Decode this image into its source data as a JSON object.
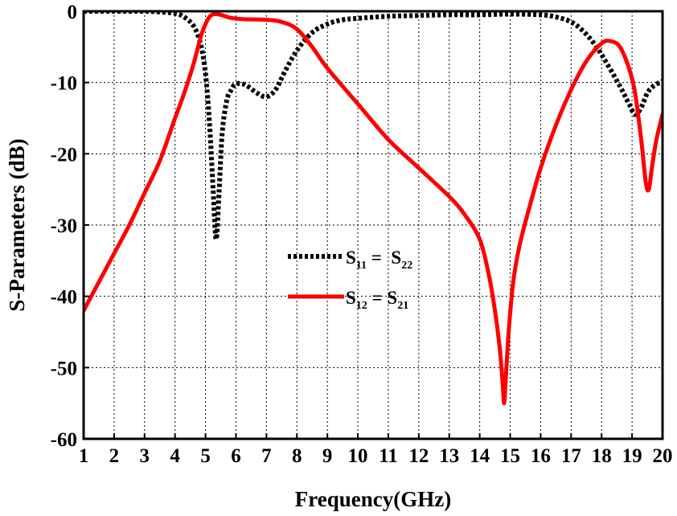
{
  "chart_data": {
    "type": "line",
    "title": "",
    "xlabel": "Frequency(GHz)",
    "ylabel": "S-Parameters (dB)",
    "xlim": [
      1,
      20
    ],
    "ylim": [
      -60,
      0
    ],
    "grid": true,
    "legend_position": "center",
    "x_ticks": [
      "1",
      "2",
      "3",
      "4",
      "5",
      "6",
      "7",
      "8",
      "9",
      "10",
      "11",
      "12",
      "13",
      "14",
      "15",
      "16",
      "17",
      "18",
      "19",
      "20"
    ],
    "y_ticks": [
      "0",
      "-10",
      "-20",
      "-30",
      "-40",
      "-50",
      "-60"
    ],
    "series": [
      {
        "key": "s11",
        "legend_main": "S",
        "legend_sub1": "11",
        "legend_mid": " =  S",
        "legend_sub2": "22",
        "color": "#000000",
        "style": "dotted",
        "x": [
          1,
          2,
          3,
          3.5,
          4,
          4.3,
          4.6,
          4.8,
          4.95,
          5.05,
          5.15,
          5.25,
          5.35,
          5.45,
          5.55,
          5.7,
          5.85,
          6.0,
          6.3,
          6.7,
          7.0,
          7.3,
          7.6,
          8.0,
          8.5,
          9.0,
          9.5,
          10,
          11,
          12,
          13,
          14,
          15,
          16,
          16.5,
          17.0,
          17.4,
          17.8,
          18.2,
          18.6,
          18.9,
          19.1,
          19.3,
          19.5,
          19.7,
          20.0
        ],
        "y": [
          0,
          0,
          0,
          -0.1,
          -0.3,
          -0.8,
          -2,
          -4,
          -7,
          -11,
          -17,
          -25,
          -32,
          -25,
          -17,
          -12.5,
          -11,
          -10.2,
          -10.3,
          -11.5,
          -12,
          -11,
          -8.5,
          -5.5,
          -3,
          -1.8,
          -1.2,
          -1,
          -0.7,
          -0.6,
          -0.5,
          -0.5,
          -0.4,
          -0.5,
          -0.8,
          -1.5,
          -2.8,
          -4.8,
          -7.5,
          -10.5,
          -13,
          -14.5,
          -13.5,
          -11.5,
          -10.5,
          -9.8
        ]
      },
      {
        "key": "s21",
        "legend_main": "S",
        "legend_sub1": "12",
        "legend_mid": " = S",
        "legend_sub2": "21",
        "color": "#ff0000",
        "style": "solid",
        "x": [
          1,
          1.5,
          2,
          2.5,
          3,
          3.5,
          4,
          4.3,
          4.6,
          4.85,
          5.0,
          5.15,
          5.3,
          5.5,
          5.8,
          6.2,
          7.0,
          7.5,
          8.0,
          8.5,
          9.0,
          10,
          11,
          12,
          13,
          13.5,
          14,
          14.3,
          14.5,
          14.65,
          14.75,
          14.8,
          14.85,
          14.95,
          15.1,
          15.3,
          15.6,
          16,
          16.5,
          17,
          17.5,
          18,
          18.3,
          18.6,
          18.9,
          19.1,
          19.3,
          19.45,
          19.55,
          19.65,
          19.8,
          20.0
        ],
        "y": [
          -42,
          -38,
          -34,
          -30,
          -25.5,
          -21,
          -15,
          -11.5,
          -7.5,
          -3.5,
          -1.8,
          -0.7,
          -0.4,
          -0.5,
          -0.9,
          -1.1,
          -1.2,
          -1.5,
          -2.5,
          -5,
          -8,
          -13,
          -18,
          -22,
          -26,
          -28.5,
          -32,
          -37,
          -42,
          -47,
          -52,
          -55,
          -52,
          -45,
          -38,
          -33,
          -28,
          -22,
          -16,
          -11,
          -7,
          -4.5,
          -4.2,
          -5,
          -8,
          -11.5,
          -18,
          -24,
          -25,
          -22,
          -18,
          -14.5
        ]
      }
    ]
  }
}
